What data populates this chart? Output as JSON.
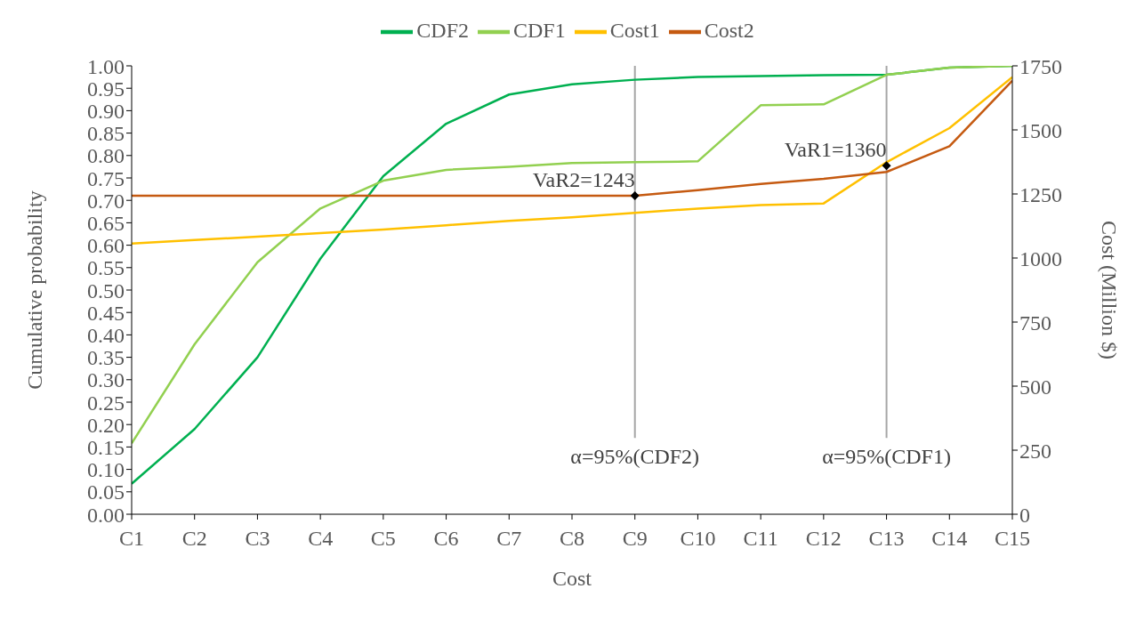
{
  "chart_data": {
    "type": "line",
    "xlabel": "Cost",
    "ylabel": "Cumulative probability",
    "y2label": "Cost (Million $)",
    "categories": [
      "C1",
      "C2",
      "C3",
      "C4",
      "C5",
      "C6",
      "C7",
      "C8",
      "C9",
      "C10",
      "C11",
      "C12",
      "C13",
      "C14",
      "C15"
    ],
    "series": [
      {
        "name": "CDF2",
        "color": "#00b050",
        "values": [
          0.068,
          0.19,
          0.35,
          0.57,
          0.754,
          0.871,
          0.936,
          0.959,
          0.969,
          0.975,
          0.977,
          0.979,
          0.98,
          0.996,
          1.0
        ]
      },
      {
        "name": "CDF1",
        "color": "#92d050",
        "values": [
          0.158,
          0.379,
          0.562,
          0.682,
          0.744,
          0.768,
          0.775,
          0.783,
          0.785,
          0.787,
          0.912,
          0.914,
          0.98,
          0.996,
          1.0
        ]
      },
      {
        "name": "Cost1",
        "color": "#ffc000",
        "axis": "y2",
        "values": [
          1056,
          1070,
          1083,
          1097,
          1111,
          1128,
          1145,
          1159,
          1176,
          1193,
          1207,
          1213,
          1374,
          1507,
          1706
        ]
      },
      {
        "name": "Cost2",
        "color": "#c55a11",
        "axis": "y2",
        "values": [
          1243,
          1243,
          1243,
          1243,
          1243,
          1243,
          1243,
          1243,
          1243,
          1265,
          1289,
          1309,
          1336,
          1436,
          1692
        ]
      },
      {
        "type": "scatter",
        "color": "#000000",
        "axis": "y2",
        "marker": "diamond",
        "x": [
          "C9",
          "C13"
        ],
        "values": [
          1243,
          1360
        ],
        "value_labels": [
          "VaR2=1243",
          "VaR1=1360"
        ]
      }
    ],
    "ylim": [
      0,
      1
    ],
    "yticks": [
      {
        "value": 0,
        "label": "0.00"
      },
      {
        "value": 0.05,
        "label": "0.05"
      },
      {
        "value": 0.1,
        "label": "0.10"
      },
      {
        "value": 0.15,
        "label": "0.15"
      },
      {
        "value": 0.2,
        "label": "0.20"
      },
      {
        "value": 0.25,
        "label": "0.25"
      },
      {
        "value": 0.3,
        "label": "0.30"
      },
      {
        "value": 0.35,
        "label": "0.35"
      },
      {
        "value": 0.4,
        "label": "0.40"
      },
      {
        "value": 0.45,
        "label": "0.45"
      },
      {
        "value": 0.5,
        "label": "0.50"
      },
      {
        "value": 0.55,
        "label": "0.55"
      },
      {
        "value": 0.6,
        "label": "0.60"
      },
      {
        "value": 0.65,
        "label": "0.65"
      },
      {
        "value": 0.7,
        "label": "0.70"
      },
      {
        "value": 0.75,
        "label": "0.75"
      },
      {
        "value": 0.8,
        "label": "0.80"
      },
      {
        "value": 0.85,
        "label": "0.85"
      },
      {
        "value": 0.9,
        "label": "0.90"
      },
      {
        "value": 0.95,
        "label": "0.95"
      },
      {
        "value": 1,
        "label": "1.00"
      }
    ],
    "y2lim": [
      0,
      1750
    ],
    "y2ticks": [
      0,
      250,
      500,
      750,
      1000,
      1250,
      1500,
      1750
    ],
    "ref_lines": [
      {
        "axis": "x",
        "value": "C9",
        "label": "α=95%(CDF2)",
        "color": "#a6a6a6"
      },
      {
        "axis": "x",
        "value": "C13",
        "label": "α=95%(CDF1)",
        "color": "#a6a6a6"
      }
    ],
    "grid": false,
    "legend": "top",
    "marker": "none",
    "line_style": "solid"
  }
}
